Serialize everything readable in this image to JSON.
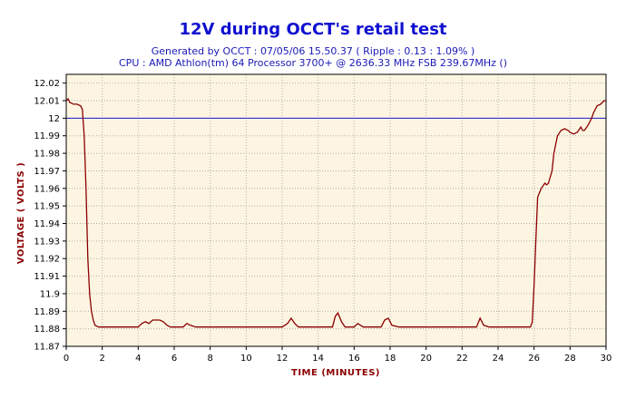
{
  "chart_data": {
    "type": "line",
    "title": "12V during OCCT's retail test",
    "subtitle_lines": [
      "Generated by OCCT : 07/05/06 15.50.37 ( Ripple : 0.13 : 1.09% )",
      "CPU : AMD Athlon(tm) 64 Processor 3700+ @ 2636.33 MHz FSB 239.67MHz ()"
    ],
    "xlabel": "TIME (MINUTES)",
    "ylabel": "VOLTAGE ( VOLTS )",
    "xlim": [
      0,
      30
    ],
    "ylim": [
      11.87,
      12.025
    ],
    "x_ticks": [
      0,
      2,
      4,
      6,
      8,
      10,
      12,
      14,
      16,
      18,
      20,
      22,
      24,
      26,
      28,
      30
    ],
    "x_tick_labels": [
      "0",
      "2",
      "4",
      "6",
      "8",
      "10",
      "12",
      "14",
      "16",
      "18",
      "20",
      "22",
      "24",
      "26",
      "28",
      "30"
    ],
    "y_ticks": [
      11.87,
      11.88,
      11.89,
      11.9,
      11.91,
      11.92,
      11.93,
      11.94,
      11.95,
      11.96,
      11.97,
      11.98,
      11.99,
      12.0,
      12.01,
      12.02
    ],
    "y_tick_labels": [
      "11.87",
      "11.88",
      "11.89",
      "11.9",
      "11.91",
      "11.92",
      "11.93",
      "11.94",
      "11.95",
      "11.96",
      "11.97",
      "11.98",
      "11.99",
      "12",
      "12.01",
      "12.02"
    ],
    "grid": true,
    "colors": {
      "plot_background": "#fdf5e2",
      "grid": "#b0b0b0",
      "series": "#8b0000",
      "reference_line": "#1a1acc",
      "axis_label": "#8b0000",
      "title": "#1010d0"
    },
    "reference_line": {
      "y": 12.0
    },
    "series": [
      {
        "x": [
          0,
          0.1,
          0.2,
          0.4,
          0.6,
          0.8,
          0.9,
          1.0,
          1.1,
          1.2,
          1.3,
          1.4,
          1.5,
          1.6,
          1.8,
          2.0,
          3.0,
          4.0,
          4.2,
          4.4,
          4.6,
          4.8,
          5.0,
          5.2,
          5.4,
          5.6,
          5.8,
          6.0,
          6.5,
          6.7,
          6.9,
          7.2,
          8,
          10,
          12.0,
          12.3,
          12.5,
          12.7,
          12.9,
          13.2,
          14,
          14.8,
          14.95,
          15.1,
          15.3,
          15.5,
          15.8,
          16.0,
          16.2,
          16.5,
          17.5,
          17.7,
          17.9,
          18.1,
          18.5,
          20,
          22,
          22.8,
          23.0,
          23.2,
          23.5,
          24,
          25,
          25.8,
          25.9,
          26.0,
          26.1,
          26.2,
          26.4,
          26.6,
          26.7,
          26.8,
          27.0,
          27.1,
          27.3,
          27.5,
          27.7,
          27.9,
          28.0,
          28.2,
          28.4,
          28.6,
          28.7,
          28.8,
          29.0,
          29.2,
          29.3,
          29.5,
          29.7,
          29.9,
          30.0
        ],
        "values": [
          12.01,
          12.011,
          12.009,
          12.008,
          12.008,
          12.007,
          12.005,
          11.99,
          11.96,
          11.92,
          11.9,
          11.89,
          11.885,
          11.882,
          11.881,
          11.881,
          11.881,
          11.881,
          11.883,
          11.884,
          11.883,
          11.885,
          11.885,
          11.885,
          11.884,
          11.882,
          11.881,
          11.881,
          11.881,
          11.883,
          11.882,
          11.881,
          11.881,
          11.881,
          11.881,
          11.883,
          11.886,
          11.883,
          11.881,
          11.881,
          11.881,
          11.881,
          11.887,
          11.889,
          11.884,
          11.881,
          11.881,
          11.881,
          11.883,
          11.881,
          11.881,
          11.885,
          11.886,
          11.882,
          11.881,
          11.881,
          11.881,
          11.881,
          11.886,
          11.882,
          11.881,
          11.881,
          11.881,
          11.881,
          11.884,
          11.905,
          11.93,
          11.955,
          11.96,
          11.963,
          11.962,
          11.963,
          11.97,
          11.98,
          11.99,
          11.993,
          11.994,
          11.993,
          11.992,
          11.991,
          11.992,
          11.995,
          11.993,
          11.993,
          11.996,
          12.0,
          12.003,
          12.007,
          12.008,
          12.01,
          12.01
        ]
      }
    ]
  }
}
